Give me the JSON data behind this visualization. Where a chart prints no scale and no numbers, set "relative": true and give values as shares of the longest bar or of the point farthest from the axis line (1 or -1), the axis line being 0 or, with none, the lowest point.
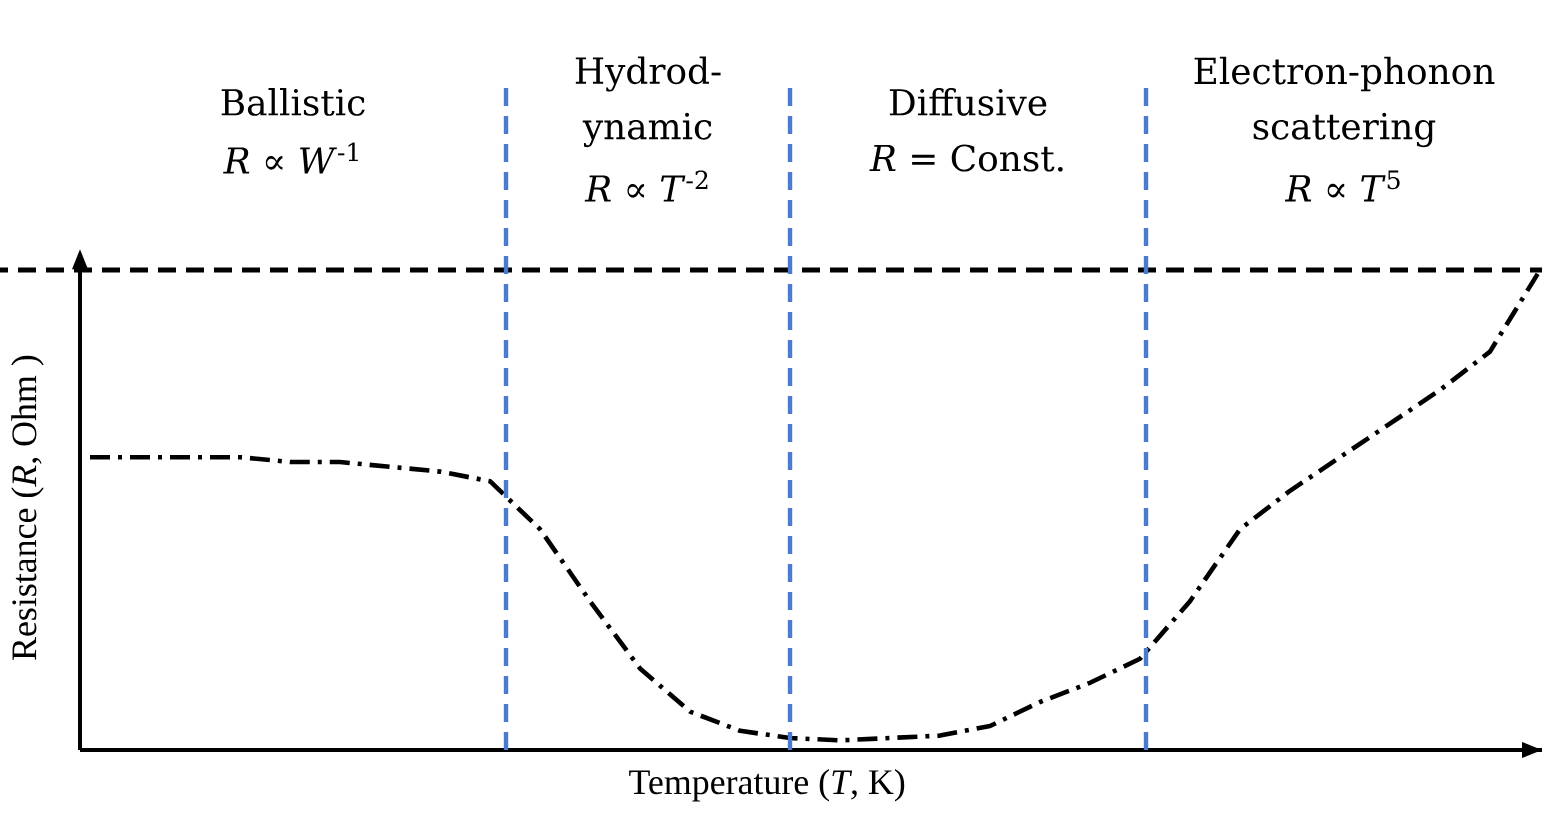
{
  "chart_data": {
    "type": "line",
    "relative": true,
    "xlabel": "Temperature (*T*, K)",
    "ylabel": "Resistance (*R*, Ohm )",
    "categories": [
      null,
      null,
      null,
      null,
      null,
      null,
      null,
      null,
      null,
      null,
      null,
      null,
      null,
      null,
      null,
      null,
      null,
      null,
      null,
      null,
      null,
      null,
      null,
      null,
      null,
      null,
      null,
      null,
      null,
      null
    ],
    "values": [
      0.61,
      0.61,
      0.61,
      0.61,
      0.6,
      0.6,
      0.59,
      0.58,
      0.56,
      0.46,
      0.31,
      0.17,
      0.08,
      0.04,
      0.025,
      0.02,
      0.025,
      0.03,
      0.05,
      0.1,
      0.14,
      0.19,
      0.31,
      0.46,
      0.54,
      0.61,
      0.68,
      0.75,
      0.83,
      1.0
    ],
    "color": "#000000",
    "line_style": "dashdot",
    "ref_lines": [
      {
        "axis": "y",
        "value": 1,
        "color": "#000000",
        "line_style": "dashed"
      }
    ],
    "annotations": [
      "Ballistic",
      "*R* ∝ *W*$^{-1}$",
      "Hydrod-",
      "ynamic",
      "*R* ∝ *T*$^{-2}$",
      "Diffusive",
      "*R* = Const.",
      "Electron-phonon",
      "scattering",
      "*R* ∝ *T*$^{5}$"
    ]
  }
}
